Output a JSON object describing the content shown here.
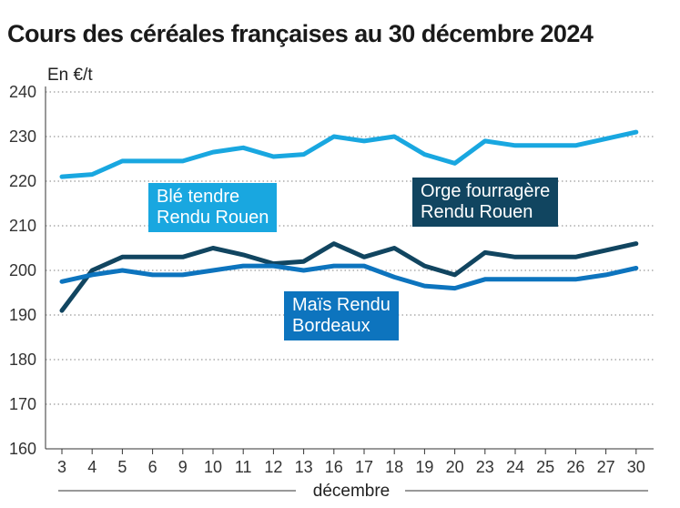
{
  "chart_data": {
    "type": "line",
    "title": "Cours des céréales françaises au 30 décembre 2024",
    "ylabel": "En €/t",
    "xlabel": "décembre",
    "categories": [
      "3",
      "4",
      "5",
      "6",
      "9",
      "10",
      "11",
      "12",
      "13",
      "16",
      "17",
      "18",
      "19",
      "20",
      "23",
      "24",
      "25",
      "26",
      "27",
      "30"
    ],
    "ylim": [
      160,
      240
    ],
    "yticks": [
      160,
      170,
      180,
      190,
      200,
      210,
      220,
      230,
      240
    ],
    "series": [
      {
        "name": "Blé tendre Rendu Rouen",
        "label_lines": [
          "Blé tendre",
          "Rendu Rouen"
        ],
        "color": "#19a7e0",
        "values": [
          221,
          221.5,
          224.5,
          224.5,
          224.5,
          226.5,
          227.5,
          225.5,
          226,
          230,
          229,
          230,
          226,
          224,
          229,
          228,
          228,
          228,
          229.5,
          231
        ]
      },
      {
        "name": "Orge fourragère Rendu Rouen",
        "label_lines": [
          "Orge fourragère",
          "Rendu Rouen"
        ],
        "color": "#114560",
        "values": [
          191,
          200,
          203,
          203,
          203,
          205,
          203.5,
          201.5,
          202,
          206,
          203,
          205,
          201,
          199,
          204,
          203,
          203,
          203,
          204.5,
          206
        ]
      },
      {
        "name": "Maïs Rendu Bordeaux",
        "label_lines": [
          "Maïs Rendu",
          "Bordeaux"
        ],
        "color": "#0d74be",
        "values": [
          197.5,
          199,
          200,
          199,
          199,
          200,
          201,
          201,
          200,
          201,
          201,
          198.5,
          196.5,
          196,
          198,
          198,
          198,
          198,
          199,
          200.5
        ]
      }
    ]
  }
}
